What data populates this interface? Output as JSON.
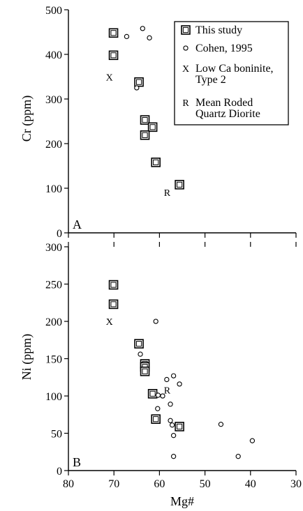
{
  "chart_data": [
    {
      "panel_label": "A",
      "type": "scatter",
      "ylabel": "Cr (ppm)",
      "xlabel": "",
      "xlim": [
        80,
        30
      ],
      "ylim": [
        0,
        500
      ],
      "yticks": [
        0,
        100,
        200,
        300,
        400,
        500
      ],
      "legend": {
        "placement": "top-right",
        "entries": [
          {
            "marker": "square",
            "lines": [
              "This study"
            ]
          },
          {
            "marker": "circle",
            "lines": [
              "Cohen, 1995"
            ]
          },
          {
            "marker": "X",
            "lines": [
              "Low Ca boninite,",
              "Type 2"
            ]
          },
          {
            "marker": "R",
            "lines": [
              "Mean Roded",
              "Quartz Diorite"
            ]
          }
        ]
      },
      "series": [
        {
          "name": "This study",
          "marker": "square",
          "x": [
            70.1,
            70.1,
            64.5,
            63.2,
            61.5,
            63.2,
            60.8,
            55.6
          ],
          "y": [
            448,
            398,
            338,
            253,
            237,
            219,
            158,
            108
          ]
        },
        {
          "name": "Cohen, 1995",
          "marker": "circle",
          "x": [
            67.2,
            63.7,
            62.2,
            65.0
          ],
          "y": [
            440,
            458,
            437,
            325
          ]
        },
        {
          "name": "Low Ca boninite, Type 2",
          "marker": "X",
          "x": [
            71.0
          ],
          "y": [
            349
          ]
        },
        {
          "name": "Mean Roded Quartz Diorite",
          "marker": "R",
          "x": [
            58.3
          ],
          "y": [
            91
          ]
        }
      ]
    },
    {
      "panel_label": "B",
      "type": "scatter",
      "ylabel": "Ni (ppm)",
      "xlabel": "Mg#",
      "xlim": [
        80,
        30
      ],
      "ylim": [
        0,
        300
      ],
      "xticks": [
        80,
        70,
        60,
        50,
        40,
        30
      ],
      "yticks": [
        0,
        50,
        100,
        150,
        200,
        250,
        300
      ],
      "series": [
        {
          "name": "This study",
          "marker": "square",
          "x": [
            70.1,
            70.1,
            64.5,
            63.2,
            63.2,
            63.2,
            61.5,
            60.8,
            55.6
          ],
          "y": [
            249,
            223,
            170,
            143,
            139,
            133,
            103,
            69,
            59
          ]
        },
        {
          "name": "Cohen, 1995",
          "marker": "circle",
          "x": [
            60.8,
            64.2,
            58.4,
            56.9,
            55.6,
            60.3,
            59.3,
            60.4,
            57.6,
            57.6,
            57.2,
            56.9,
            46.5,
            39.6,
            42.7,
            56.9
          ],
          "y": [
            200,
            156,
            122,
            127,
            116,
            101,
            100,
            83,
            89,
            67,
            61,
            47,
            62,
            40,
            19,
            19
          ]
        },
        {
          "name": "Low Ca boninite, Type 2",
          "marker": "X",
          "x": [
            71.0
          ],
          "y": [
            200
          ]
        },
        {
          "name": "Mean Roded Quartz Diorite",
          "marker": "R",
          "x": [
            58.3
          ],
          "y": [
            108
          ]
        }
      ]
    }
  ]
}
